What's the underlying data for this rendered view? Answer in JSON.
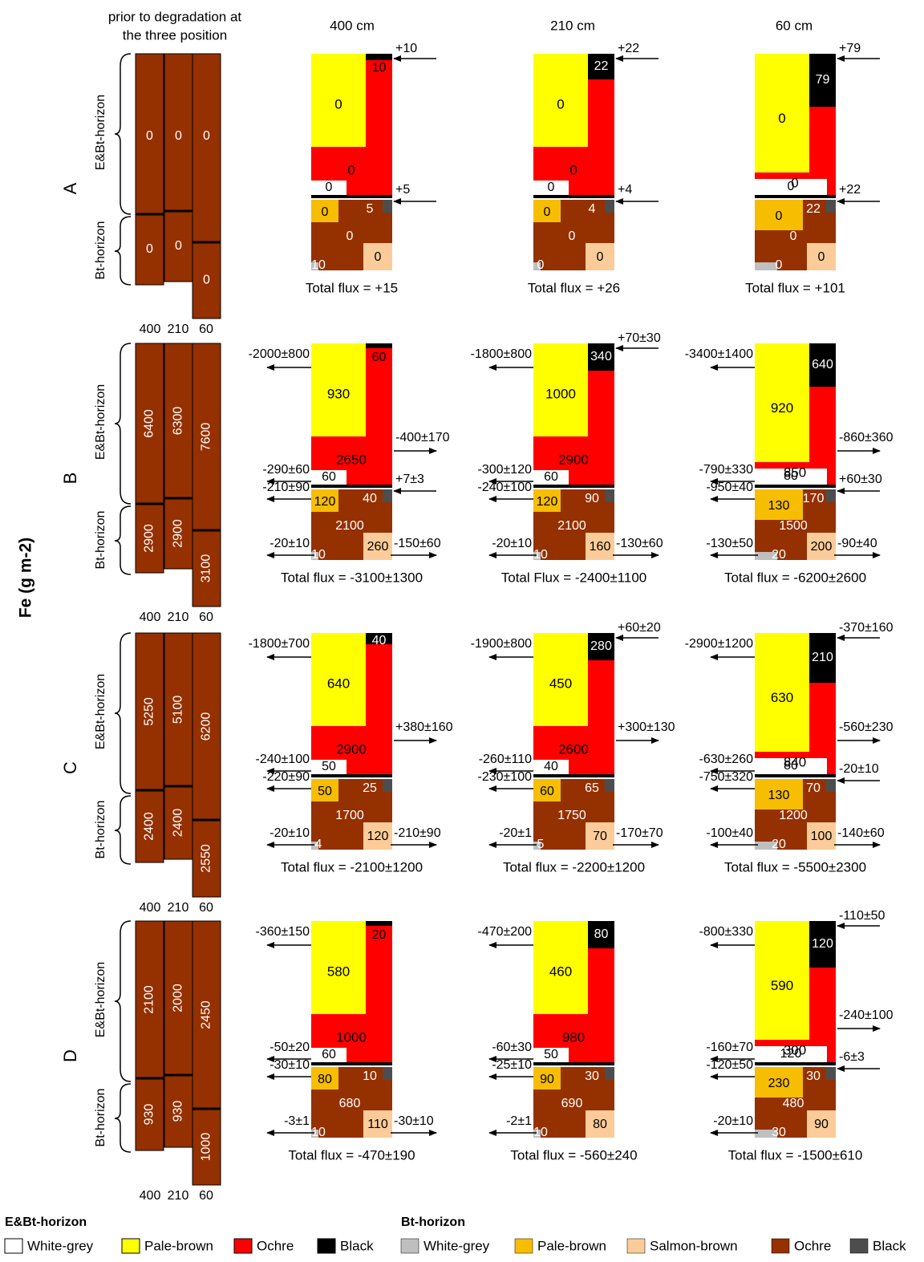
{
  "y_axis_label": "Fe (g m",
  "y_axis_sup": "-2",
  "y_axis_close": ")",
  "prior_title_1": "prior to degradation at",
  "prior_title_2": "the three position",
  "position_headers": [
    "400 cm",
    "210 cm",
    "60 cm"
  ],
  "col_labels": [
    "400",
    "210",
    "60"
  ],
  "horizon_labels": {
    "ebt": "E&Bt-horizon",
    "bt": "Bt-horizon"
  },
  "colors": {
    "white_grey": "#ffffff",
    "pale_brown_e": "#ffff00",
    "ochre_e": "#ff0000",
    "black": "#000000",
    "white_grey_bt": "#bfbfbf",
    "pale_brown_bt": "#f7bd00",
    "salmon_brown": "#fbcc99",
    "ochre_bt": "#953000",
    "black_bt": "#4d4d4d",
    "prior_column": "#953000"
  },
  "rows": [
    {
      "letter": "A",
      "prior": [
        [
          "0",
          "0"
        ],
        [
          "0",
          "0"
        ],
        [
          "0",
          "0"
        ]
      ],
      "panels": [
        {
          "cells": {
            "yellow": "0",
            "red_low": "0",
            "black": "10",
            "white": "0",
            "pale": "0",
            "blackbt": "5",
            "ochre": "0",
            "salmon": "0",
            "grey": "10"
          },
          "fluxes": {
            "rt": "+10",
            "rm": "+5"
          },
          "total": "Total flux = +15"
        },
        {
          "cells": {
            "yellow": "0",
            "red_low": "0",
            "black": "22",
            "white": "0",
            "pale": "0",
            "blackbt": "4",
            "ochre": "0",
            "salmon": "0",
            "grey": "0"
          },
          "fluxes": {
            "rt": "+22",
            "rm": "+4"
          },
          "total": "Total flux = +26"
        },
        {
          "cells": {
            "yellow": "0",
            "red_low": "0",
            "black": "79",
            "white": "0",
            "pale": "0",
            "blackbt": "22",
            "ochre": "0",
            "salmon": "0",
            "grey": "0"
          },
          "fluxes": {
            "rt": "+79",
            "rm": "+22"
          },
          "total": "Total flux = +101"
        }
      ]
    },
    {
      "letter": "B",
      "prior": [
        [
          "6400",
          "2900"
        ],
        [
          "6300",
          "2900"
        ],
        [
          "7600",
          "3100"
        ]
      ],
      "panels": [
        {
          "cells": {
            "yellow": "930",
            "red_low": "2650",
            "black": "60",
            "white": "60",
            "pale": "120",
            "blackbt": "40",
            "ochre": "2100",
            "salmon": "260",
            "grey": "10"
          },
          "fluxes": {
            "lt": "-2000±800",
            "rmid": "-400±170",
            "lw": "-290±60",
            "lp": "-210±90",
            "rm": "+7±3",
            "lb": "-20±10",
            "rb": "-150±60"
          },
          "total": "Total flux = -3100±1300"
        },
        {
          "cells": {
            "yellow": "1000",
            "red_low": "2900",
            "black": "340",
            "white": "60",
            "pale": "120",
            "blackbt": "90",
            "ochre": "2100",
            "salmon": "160",
            "grey": "10"
          },
          "fluxes": {
            "rt": "+70±30",
            "lt": "-1800±800",
            "lw": "-300±120",
            "lp": "-240±100",
            "lb": "-20±10",
            "rb": "-130±60"
          },
          "total": "Total Flux = -2400±1100"
        },
        {
          "cells": {
            "yellow": "920",
            "red_low": "850",
            "black": "640",
            "white": "80",
            "pale": "130",
            "blackbt": "170",
            "ochre": "1500",
            "salmon": "200",
            "grey": "20"
          },
          "fluxes": {
            "lt": "-3400±1400",
            "rmid": "-860±360",
            "lw": "-790±330",
            "lp": "-950±40",
            "rm": "+60±30",
            "lb": "-130±50",
            "rb": "-90±40"
          },
          "total": "Total flux = -6200±2600"
        }
      ]
    },
    {
      "letter": "C",
      "prior": [
        [
          "5250",
          "2400"
        ],
        [
          "5100",
          "2400"
        ],
        [
          "6200",
          "2550"
        ]
      ],
      "panels": [
        {
          "cells": {
            "yellow": "640",
            "red_low": "2900",
            "black": "40",
            "white": "50",
            "pale": "50",
            "blackbt": "25",
            "ochre": "1700",
            "salmon": "120",
            "grey": "4"
          },
          "fluxes": {
            "lt": "-1800±700",
            "rmid": "+380±160",
            "lw": "-240±100",
            "lp": "-220±90",
            "lb": "-20±10",
            "rb": "-210±90"
          },
          "total": "Total flux = -2100±1200"
        },
        {
          "cells": {
            "yellow": "450",
            "red_low": "2600",
            "black": "280",
            "white": "40",
            "pale": "60",
            "blackbt": "65",
            "ochre": "1750",
            "salmon": "70",
            "grey": "5"
          },
          "fluxes": {
            "rt": "+60±20",
            "lt": "-1900±800",
            "rmid": "+300±130",
            "lw": "-260±110",
            "lp": "-230±100",
            "lb": "-20±1",
            "rb": "-170±70"
          },
          "total": "Total flux = -2200±1200"
        },
        {
          "cells": {
            "yellow": "630",
            "red_low": "840",
            "black": "210",
            "white": "80",
            "pale": "130",
            "blackbt": "70",
            "ochre": "1200",
            "salmon": "100",
            "grey": "20"
          },
          "fluxes": {
            "rt": "-370±160",
            "lt": "-2900±1200",
            "lw": "-630±260",
            "rmid": "-560±230",
            "lp": "-750±320",
            "rm": "-20±10",
            "lb": "-100±40",
            "rb": "-140±60"
          },
          "total": "Total flux = -5500±2300"
        }
      ]
    },
    {
      "letter": "D",
      "prior": [
        [
          "2100",
          "930"
        ],
        [
          "2000",
          "930"
        ],
        [
          "2450",
          "1000"
        ]
      ],
      "panels": [
        {
          "cells": {
            "yellow": "580",
            "red_low": "1000",
            "black": "20",
            "white": "60",
            "pale": "80",
            "blackbt": "10",
            "ochre": "680",
            "salmon": "110",
            "grey": "10"
          },
          "fluxes": {
            "lt": "-360±150",
            "lw": "-50±20",
            "lp": "-30±10",
            "lb": "-3±1",
            "rb": "-30±10"
          },
          "total": "Total flux = -470±190"
        },
        {
          "cells": {
            "yellow": "460",
            "red_low": "980",
            "black": "80",
            "white": "50",
            "pale": "90",
            "blackbt": "30",
            "ochre": "690",
            "salmon": "80",
            "grey": "10"
          },
          "fluxes": {
            "lt": "-470±200",
            "lw": "-60±30",
            "lp": "-25±10",
            "lb": "-2±1"
          },
          "total": "Total flux = -560±240"
        },
        {
          "cells": {
            "yellow": "590",
            "red_low": "300",
            "black": "120",
            "white": "120",
            "pale": "230",
            "blackbt": "30",
            "ochre": "480",
            "salmon": "90",
            "grey": "30"
          },
          "fluxes": {
            "rt": "-110±50",
            "lt": "-800±330",
            "lw": "-160±70",
            "rmid": "-240±100",
            "lp": "-120±50",
            "rm": "-6±3",
            "lb": "-20±10"
          },
          "total": "Total flux = -1500±610"
        }
      ]
    }
  ],
  "legend": {
    "ebt_title": "E&Bt-horizon",
    "bt_title": "Bt-horizon",
    "ebt_items": [
      {
        "label": "White-grey",
        "color": "#ffffff"
      },
      {
        "label": "Pale-brown",
        "color": "#ffff00"
      },
      {
        "label": "Ochre",
        "color": "#ff0000"
      },
      {
        "label": "Black",
        "color": "#000000"
      }
    ],
    "bt_items": [
      {
        "label": "White-grey",
        "color": "#bfbfbf"
      },
      {
        "label": "Pale-brown",
        "color": "#f7bd00"
      },
      {
        "label": "Salmon-brown",
        "color": "#fbcc99"
      },
      {
        "label": "Ochre",
        "color": "#953000"
      },
      {
        "label": "Black",
        "color": "#4d4d4d"
      }
    ]
  }
}
